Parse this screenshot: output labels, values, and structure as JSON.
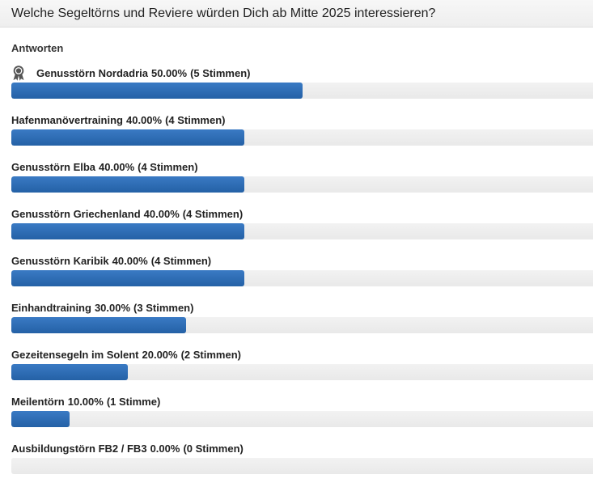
{
  "poll": {
    "question": "Welche Segeltörns und Reviere würden Dich ab Mitte 2025 interessieren?",
    "answers_label": "Antworten",
    "options": [
      {
        "name": "Genusstörn Nordadria",
        "percent": "50.00%",
        "votes": "(5 Stimmen)",
        "fraction": 0.5,
        "winner": true,
        "icon": "award-ribbon-icon"
      },
      {
        "name": "Hafenmanövertraining",
        "percent": "40.00%",
        "votes": "(4 Stimmen)",
        "fraction": 0.4,
        "winner": false
      },
      {
        "name": "Genusstörn Elba",
        "percent": "40.00%",
        "votes": "(4 Stimmen)",
        "fraction": 0.4,
        "winner": false
      },
      {
        "name": "Genusstörn Griechenland",
        "percent": "40.00%",
        "votes": "(4 Stimmen)",
        "fraction": 0.4,
        "winner": false
      },
      {
        "name": "Genusstörn Karibik",
        "percent": "40.00%",
        "votes": "(4 Stimmen)",
        "fraction": 0.4,
        "winner": false
      },
      {
        "name": "Einhandtraining",
        "percent": "30.00%",
        "votes": "(3 Stimmen)",
        "fraction": 0.3,
        "winner": false
      },
      {
        "name": "Gezeitensegeln im Solent",
        "percent": "20.00%",
        "votes": "(2 Stimmen)",
        "fraction": 0.2,
        "winner": false
      },
      {
        "name": "Meilentörn",
        "percent": "10.00%",
        "votes": "(1 Stimme)",
        "fraction": 0.1,
        "winner": false
      },
      {
        "name": "Ausbildungstörn FB2 / FB3",
        "percent": "0.00%",
        "votes": "(0 Stimmen)",
        "fraction": 0.0,
        "winner": false
      }
    ]
  },
  "colors": {
    "bar_fill": "#2a68ae",
    "bar_track": "#ededed"
  }
}
